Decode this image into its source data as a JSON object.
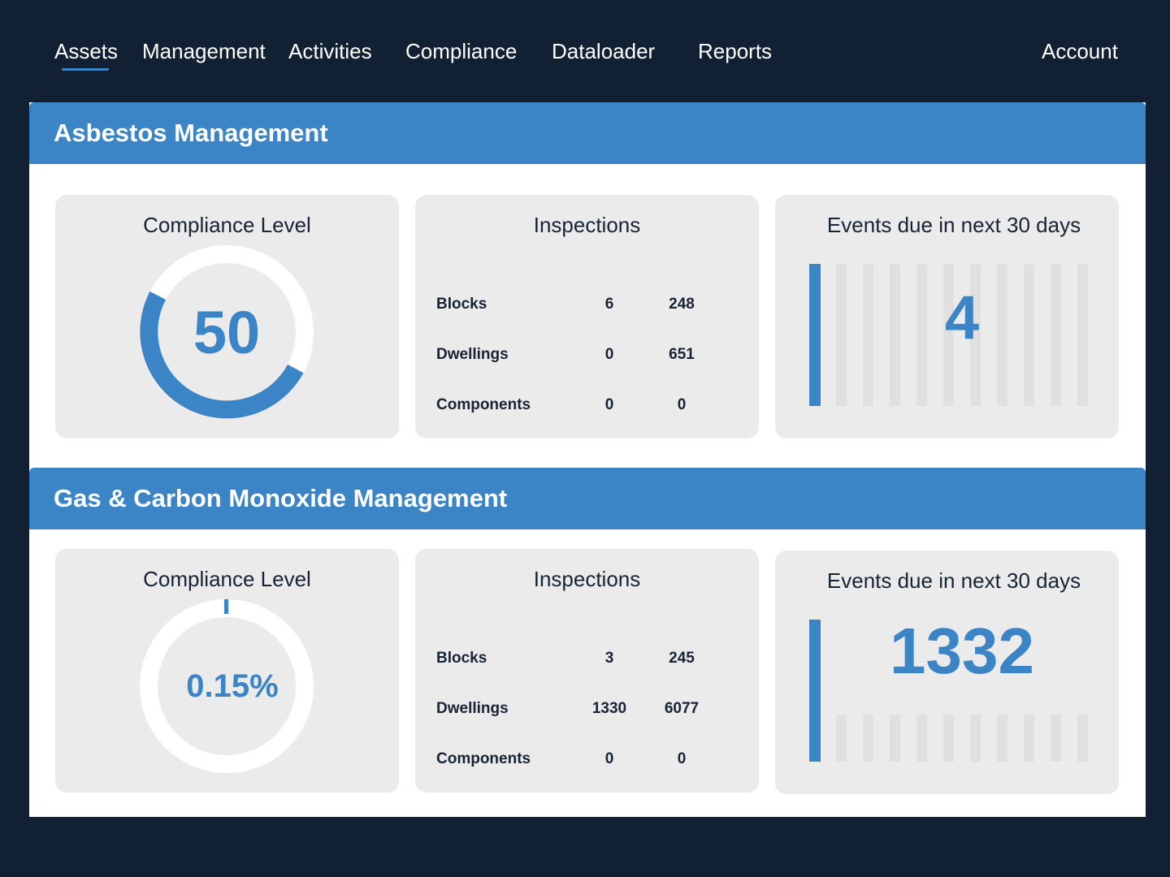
{
  "nav": {
    "items": [
      "Assets",
      "Management",
      "Activities",
      "Compliance",
      "Dataloader",
      "Reports"
    ],
    "account": "Account",
    "active": "Assets"
  },
  "colors": {
    "background": "#112032",
    "accent": "#3b84c6",
    "card": "#ebebeb",
    "bar_idle": "#e0e0e0"
  },
  "sections": [
    {
      "title": "Asbestos Management",
      "compliance": {
        "title": "Compliance Level",
        "value": "50",
        "fraction": 0.5
      },
      "inspections": {
        "title": "Inspections",
        "rows": [
          {
            "label": "Blocks",
            "v1": "6",
            "v2": "248"
          },
          {
            "label": "Dwellings",
            "v1": "0",
            "v2": "651"
          },
          {
            "label": "Components",
            "v1": "0",
            "v2": "0"
          }
        ]
      },
      "events": {
        "title": "Events due in next 30 days",
        "value": "4"
      }
    },
    {
      "title": "Gas & Carbon Monoxide Management",
      "compliance": {
        "title": "Compliance Level",
        "value": "0.15%",
        "fraction": 0.0015
      },
      "inspections": {
        "title": "Inspections",
        "rows": [
          {
            "label": "Blocks",
            "v1": "3",
            "v2": "245"
          },
          {
            "label": "Dwellings",
            "v1": "1330",
            "v2": "6077"
          },
          {
            "label": "Components",
            "v1": "0",
            "v2": "0"
          }
        ]
      },
      "events": {
        "title": "Events due in next 30 days",
        "value": "1332"
      }
    }
  ]
}
